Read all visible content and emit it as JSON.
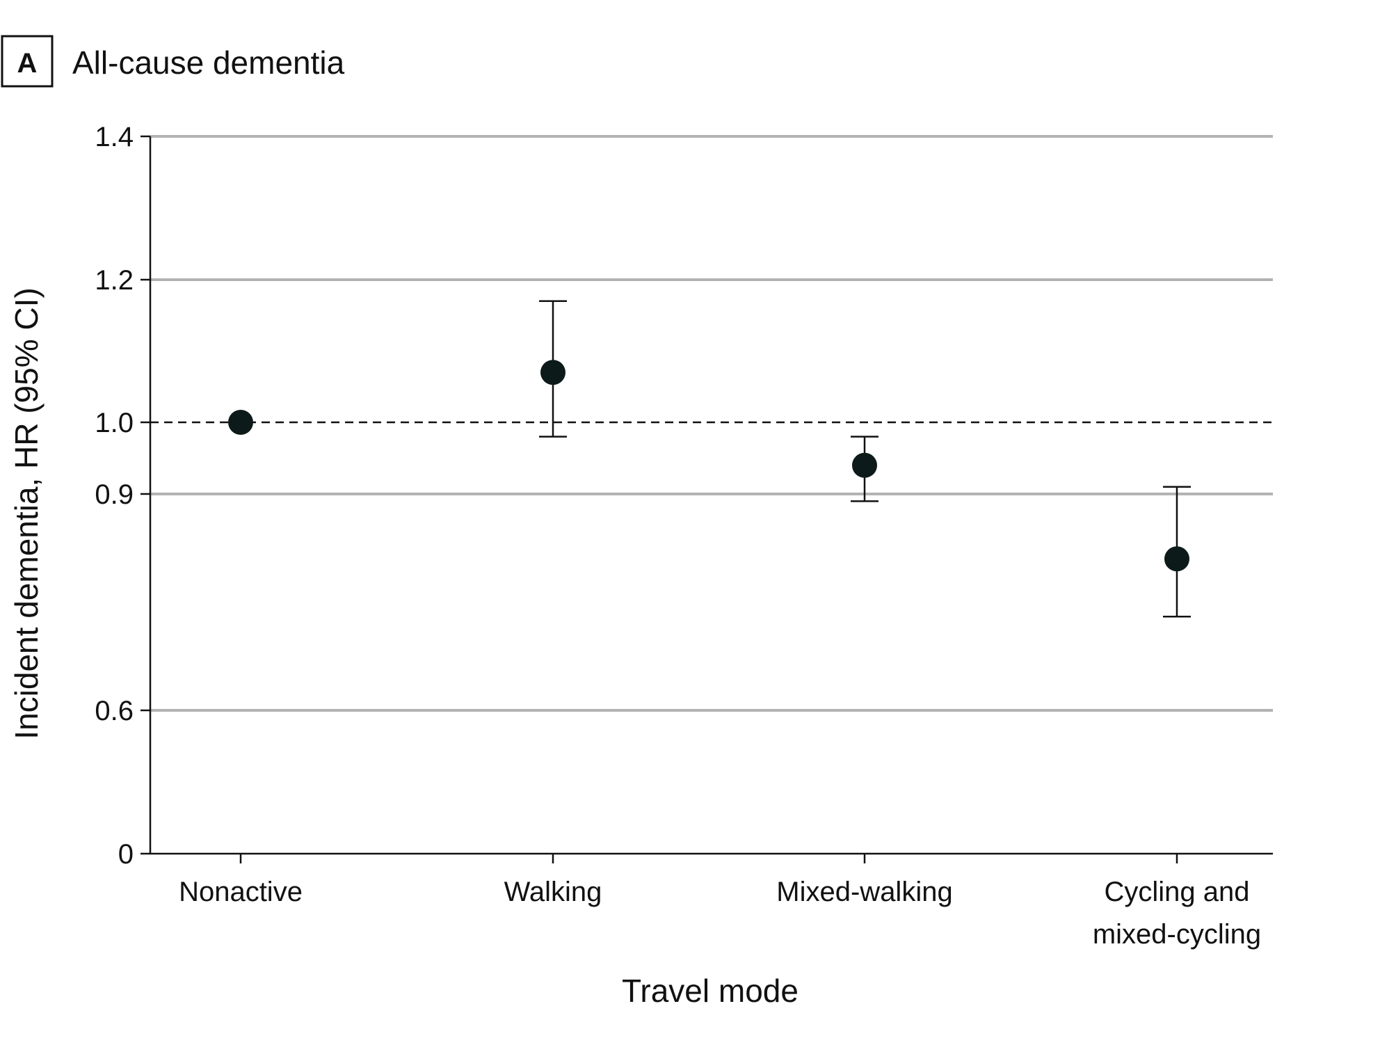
{
  "panel": {
    "letter": "A",
    "title": "All-cause dementia"
  },
  "colors": {
    "grid": "#b3b3b3",
    "axis": "#111111",
    "marker": "#0d1a1a",
    "reference": "#111111"
  },
  "chart_data": {
    "type": "scatter",
    "title": "All-cause dementia",
    "xlabel": "Travel mode",
    "ylabel": "Incident dementia, HR (95% CI)",
    "categories": [
      [
        "Nonactive"
      ],
      [
        "Walking"
      ],
      [
        "Mixed-walking"
      ],
      [
        "Cycling and",
        "mixed-cycling"
      ]
    ],
    "points": [
      {
        "hr": 1.0,
        "lower": null,
        "upper": null
      },
      {
        "hr": 1.07,
        "lower": 0.98,
        "upper": 1.17
      },
      {
        "hr": 0.94,
        "lower": 0.89,
        "upper": 0.98
      },
      {
        "hr": 0.81,
        "lower": 0.73,
        "upper": 0.91
      }
    ],
    "y_ticks": [
      {
        "value": 0,
        "label": "0"
      },
      {
        "value": 0.6,
        "label": "0.6"
      },
      {
        "value": 0.9,
        "label": "0.9"
      },
      {
        "value": 1.0,
        "label": "1.0"
      },
      {
        "value": 1.2,
        "label": "1.2"
      },
      {
        "value": 1.4,
        "label": "1.4"
      }
    ],
    "ylim": [
      0,
      1.4
    ],
    "y_scale": "log-like (ticks unevenly spaced)",
    "reference_line": 1.0,
    "grid": true
  }
}
